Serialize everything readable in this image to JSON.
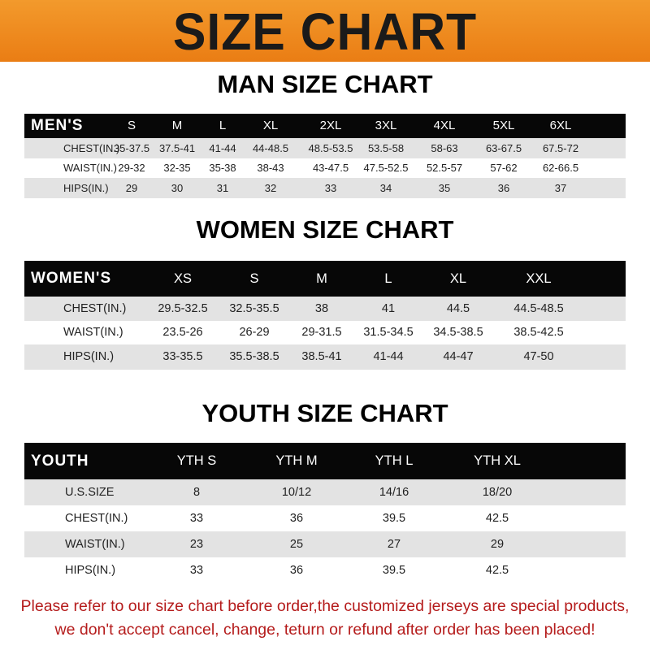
{
  "banner": {
    "title": "SIZE CHART",
    "color": "#f08a1c"
  },
  "men": {
    "title": "MAN SIZE CHART",
    "header": [
      "MEN'S",
      "S",
      "M",
      "L",
      "XL",
      "2XL",
      "3XL",
      "4XL",
      "5XL",
      "6XL"
    ],
    "rows": [
      [
        "CHEST(IN.)",
        "35-37.5",
        "37.5-41",
        "41-44",
        "44-48.5",
        "48.5-53.5",
        "53.5-58",
        "58-63",
        "63-67.5",
        "67.5-72"
      ],
      [
        "WAIST(IN.)",
        "29-32",
        "32-35",
        "35-38",
        "38-43",
        "43-47.5",
        "47.5-52.5",
        "52.5-57",
        "57-62",
        "62-66.5"
      ],
      [
        "HIPS(IN.)",
        "29",
        "30",
        "31",
        "32",
        "33",
        "34",
        "35",
        "36",
        "37"
      ]
    ]
  },
  "women": {
    "title": "WOMEN SIZE CHART",
    "header": [
      "WOMEN'S",
      "XS",
      "S",
      "M",
      "L",
      "XL",
      "XXL"
    ],
    "rows": [
      [
        "CHEST(IN.)",
        "29.5-32.5",
        "32.5-35.5",
        "38",
        "41",
        "44.5",
        "44.5-48.5"
      ],
      [
        "WAIST(IN.)",
        "23.5-26",
        "26-29",
        "29-31.5",
        "31.5-34.5",
        "34.5-38.5",
        "38.5-42.5"
      ],
      [
        "HIPS(IN.)",
        "33-35.5",
        "35.5-38.5",
        "38.5-41",
        "41-44",
        "44-47",
        "47-50"
      ]
    ]
  },
  "youth": {
    "title": "YOUTH SIZE CHART",
    "header": [
      "YOUTH",
      "YTH S",
      "YTH M",
      "YTH L",
      "YTH XL"
    ],
    "rows": [
      [
        "U.S.SIZE",
        "8",
        "10/12",
        "14/16",
        "18/20"
      ],
      [
        "CHEST(IN.)",
        "33",
        "36",
        "39.5",
        "42.5"
      ],
      [
        "WAIST(IN.)",
        "23",
        "25",
        "27",
        "29"
      ],
      [
        "HIPS(IN.)",
        "33",
        "36",
        "39.5",
        "42.5"
      ]
    ]
  },
  "footer": {
    "line1": "Please refer to our size chart before order,the customized jerseys are special products,",
    "line2": "we don't accept cancel, change, teturn or refund after order has been placed!",
    "color": "#b51c1c"
  }
}
